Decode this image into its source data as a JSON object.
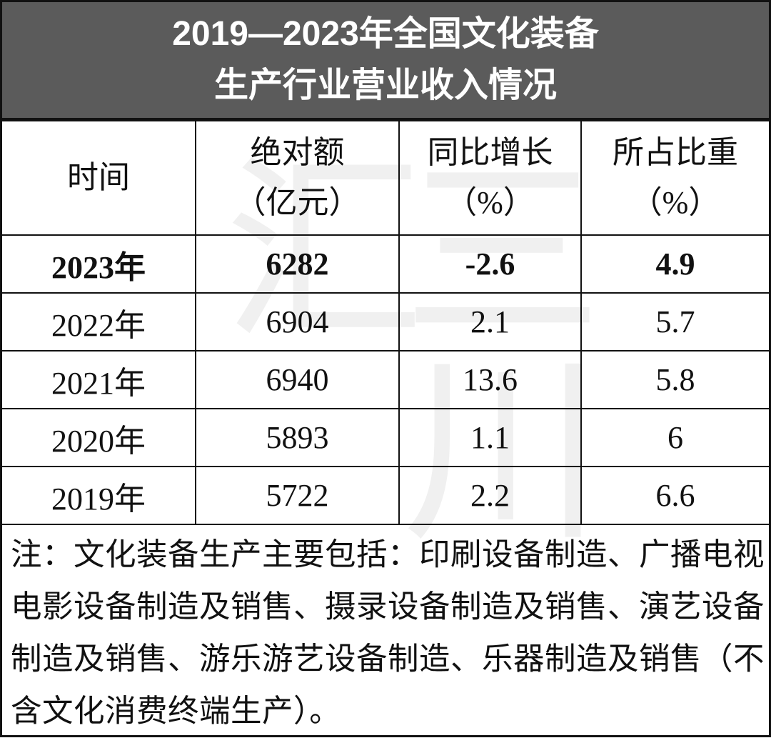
{
  "title": {
    "lines": [
      "2019—2023年全国文化装备",
      "生产行业营业收入情况"
    ]
  },
  "table": {
    "columns": [
      [
        "时间"
      ],
      [
        "绝对额",
        "（亿元）"
      ],
      [
        "同比增长",
        "（%）"
      ],
      [
        "所占比重",
        "（%）"
      ]
    ],
    "rows": [
      [
        "2023年",
        6282,
        -2.6,
        4.9
      ],
      [
        "2022年",
        6904,
        2.1,
        5.7
      ],
      [
        "2021年",
        6940,
        13.6,
        5.8
      ],
      [
        "2020年",
        5893,
        1.1,
        6
      ],
      [
        "2019年",
        5722,
        2.2,
        6.6
      ]
    ]
  },
  "note": "注：文化装备生产主要包括：印刷设备制造、广播电视电影设备制造及销售、摄录设备制造及销售、演艺设备制造及销售、游乐游艺设备制造、乐器制造及销售（不含文化消费终端生产）。",
  "watermark": "三川汇"
}
